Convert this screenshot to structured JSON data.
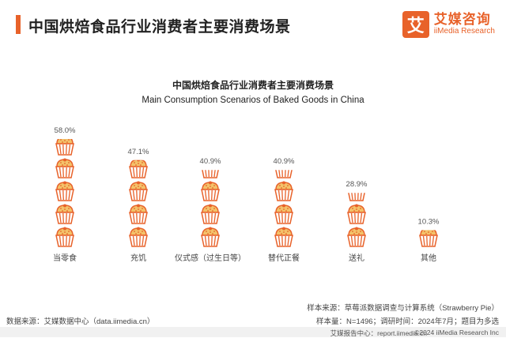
{
  "header": {
    "title": "中国烘焙食品行业消费者主要消费场景"
  },
  "logo": {
    "mark": "艾",
    "name_cn": "艾媒咨询",
    "name_en": "iiMedia Research"
  },
  "colors": {
    "accent": "#e8622a",
    "cup": "#e8622a",
    "top": "#f3c26a"
  },
  "chart_data": {
    "type": "bar",
    "title": "中国烘焙食品行业消费者主要消费场景",
    "subtitle": "Main Consumption Scenarios of Baked Goods in China",
    "categories": [
      "当零食",
      "充饥",
      "仪式感（过生日等）",
      "替代正餐",
      "送礼",
      "其他"
    ],
    "values": [
      58.0,
      47.1,
      40.9,
      40.9,
      28.9,
      10.3
    ],
    "value_labels": [
      "58.0%",
      "47.1%",
      "40.9%",
      "40.9%",
      "28.9%",
      "10.3%"
    ],
    "unit": "%",
    "ylim": [
      0,
      60
    ],
    "icon": "cupcake-icon",
    "grid": false,
    "legend": "none"
  },
  "footer": {
    "source_left": "数据来源：艾媒数据中心（data.iimedia.cn）",
    "sample_source": "样本来源：草莓派数据调查与计算系统（Strawberry Pie）",
    "sample_size": "样本量：N=1496；调研时间：2024年7月；题目为多选",
    "report_site": "艾媒报告中心：report.iimedia.cn",
    "copyright": "©2024 iiMedia Research Inc"
  }
}
